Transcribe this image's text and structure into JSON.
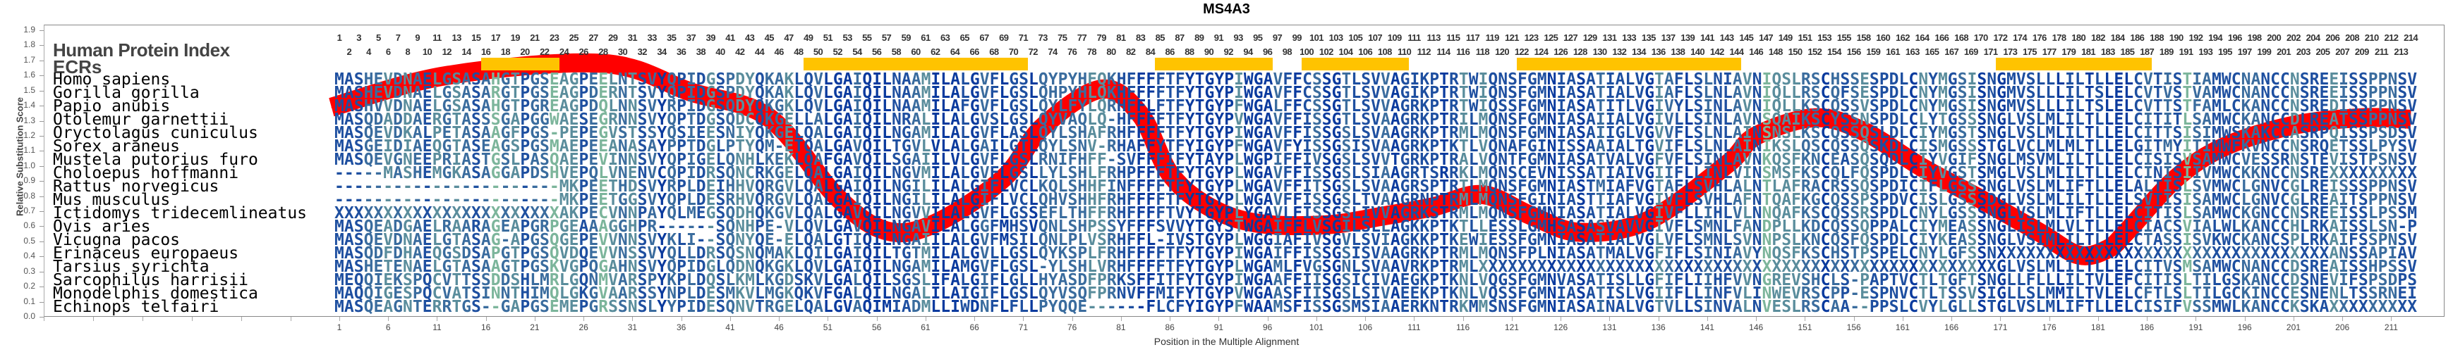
{
  "title": "MS4A3",
  "header": {
    "human_protein_index_label": "Human Protein Index",
    "ecrs_label": "ECRs"
  },
  "human_index_labels": [
    1,
    2,
    3,
    4,
    5,
    6,
    7,
    8,
    9,
    10,
    11,
    12,
    13,
    14,
    15,
    16,
    17,
    18,
    19,
    20,
    21,
    22,
    23,
    24,
    25,
    26,
    27,
    28,
    29,
    30,
    31,
    32,
    33,
    34,
    35,
    36,
    37,
    38,
    39,
    40,
    41,
    42,
    43,
    44,
    45,
    46,
    47,
    48,
    49,
    50,
    51,
    52,
    53,
    54,
    55,
    56,
    57,
    58,
    59,
    60,
    61,
    62,
    63,
    64,
    65,
    66,
    67,
    68,
    69,
    70,
    71,
    72,
    73,
    74,
    75,
    76,
    77,
    78,
    79,
    80,
    81,
    82,
    83,
    84,
    85,
    86,
    87,
    88,
    89,
    90,
    91,
    92,
    93,
    94,
    95,
    96,
    97,
    98,
    99,
    100,
    101,
    102,
    103,
    104,
    105,
    106,
    107,
    108,
    109,
    110,
    111,
    112,
    113,
    114,
    115,
    116,
    117,
    118,
    119,
    120,
    121,
    122,
    123,
    124,
    125,
    126,
    127,
    128,
    129,
    130,
    131,
    132,
    133,
    134,
    135,
    136,
    137,
    138,
    139,
    140,
    141,
    142,
    143,
    144,
    145,
    146,
    147,
    148,
    149,
    150,
    151,
    152,
    153,
    154,
    155,
    156,
    158,
    159,
    160,
    161,
    162,
    163,
    164,
    165,
    166,
    167,
    168,
    169,
    170,
    171,
    172,
    173,
    174,
    175,
    176,
    177,
    178,
    179,
    180,
    181,
    182,
    183,
    184,
    185,
    186,
    187,
    188,
    189,
    190,
    191,
    192,
    193,
    194,
    195,
    196,
    197,
    198,
    199,
    200,
    201,
    202,
    203,
    204,
    205,
    206,
    207,
    208,
    209,
    210,
    211,
    212,
    213,
    214
  ],
  "ecr_regions": [
    [
      16,
      23
    ],
    [
      49,
      71
    ],
    [
      85,
      96
    ],
    [
      100,
      110
    ],
    [
      122,
      144
    ],
    [
      171,
      186
    ]
  ],
  "alignment": [
    {
      "species": "Homo sapiens",
      "sequence": "MASHEVDNAELGSASAHGTPGSEAGPEELNTSVYQPIDGSPDYQKAKLQVLGAIQILNAAMILALGVFLGSLQYPYHFQKHFFFFTFYTGYPIWGAVFFCSSGTLSVVAGIKPTRTWIQNSFGMNIASATIALVGTAFLSLNIAVNIQSLRSCHSSESPDLCNYMGSISNGMVSLLLILTLLELCVTISTIAMWCNANCCNSREEISSPPNSV"
    },
    {
      "species": "Gorilla gorilla",
      "sequence": "MASHEVDNAELGSASARGTPGSEAGPDERNTSVYQPIDGSPDYQKAKLQVLGAIQILNAAMILALGVFLGSLQHPYHLQKHFFFFTFYTGYPIWGAVFFCSSGTLSVVAGIKPTRTWIQNSFGMNIASATIALVGIAFLSLNLAVNIQLLRSCQFSESPDLCNYMGSISNGMVSLLLILTSLELCVTVSTVAMWCNANCCNSREEISSPPNSV"
    },
    {
      "species": "Papio anubis",
      "sequence": "MASHVVDNAELGSASAHGTPGREAGPDQLNNSVYRPIDGSQDYQKGKLQVLGAIQILNAAMILAFGVFLGSLQYLFYLQRHFFLFTFYTGYPFWGALFFCSSGTLSVVAGRKPTRTWIQSSFGMNIASATITLVGIVYLSINLAVNIQLLKSCQSSVSPDLCNYMGSISNGMVSLLLILTSLELCVTTSTFAMLCKANCCNSREDISSPPNSV"
    },
    {
      "species": "Otolemur garnettii",
      "sequence": "MASQDADDAERGTASSSGAPGGWAESEGRNNSVYQPTDGSQDCQKGELLALGAIQILNRALILALGVSLGSLQYVAQLQ-HFFFFTFYTGYPVWGAVFFISSGTLSVAAGRKPTRILMQNSFGMNIASAIIALVGIVLLSINLAVNSQAIKSCYSSNSPDLCLYTGSSSNGLVSLMLILTLLELCITITLSAMWCKANCCDLREATSSPPNSV"
    },
    {
      "species": "Oryctolagus cuniculus",
      "sequence": "MASQEVDKALPETASAAGFPGS-PEPEGVSTSSYQSIEESNIYQKGELQALGAIQILNGAMILALGVFLASLQYLSHAFRHFFFFTFYTGYPIWGAVFFISSGSLSVAAGRKPTRMLMQNSFGMNIASAIIGLVGVVFLSLNLAINSNSLKSCQSSQSLDLCIYMGSTSNGLVSLMLILTLLELCITTSISIMWSKAKCCASRPQISSPSDSV"
    },
    {
      "species": "Sorex araneus",
      "sequence": "MASGEIDIAEQGTASEAGSPGSMAEPEEANASAYPPTDGLPTYQM-ETQALGAVQILTGVLVLALGAILGTLQYLSNV-RHAFFYTFYIGYPFWGAVFYISSGSISVAAGRKPTKTLVQNAFGINISSAAIALTGVIFLSLNLAINIKSLQSCQSSQSKDLCISMGSSSTGLVCLMLMLTLLELGITMYITIMWFKVNCCNSRQETSSLPYSV"
    },
    {
      "species": "Mustela putorius furo",
      "sequence": "MASQEVGNEEPRIASTGSLPASQAEPEVINNSVYQPIGELQNHLKEKLQAFGAVQILSGAIILVLGVFLGSLRNIFHFF-SVFFFIFYTAYPLWGPIFFIVSGSLSVVTGRKPTRALVQNTFGMNIASATVALVGFVFLSINLAVNKQSFKNCEASQSQDLCIYVGIFSNGLMSVMLILTLLELCISISVSAMWCVESSRNSTEVISTPSNSV"
    },
    {
      "species": "Choloepus hoffmanni",
      "sequence": "-----MASHEMGKASAGGAPDSHVEPQLVNENVCQPIDRSQNCRKGELQALGAIQILNGVMILALGVFLGSLLYLSHLFRHPFFFTFYTGYPLWGAVFFISSGSLSIAAGRTSRRKLMQNSCEVNISSATIAIVGIIFLLINLVINSMSFKSCQLFQSPDLCIYVGSTSMGLVSLMLILTLLELCINISIIVMWCKKNCCNSREXXXXXXXXX"
    },
    {
      "species": "Rattus norvegicus",
      "sequence": "-----------------------MKPEETHDSVYRPLDEIHHVQRGVLQALGAIQILNGILILALGIFLVCLKQLSHHFINFFFFTFYTGYPLWGAVFFITSGSLSVAAGRSPTRTLMQNSFGMNIASTMIAFVGTAFLSVHLALNTLAFRACRSSQSPDICIFLGSSSNGLVSLMLIFTLLELALTISLSVMWCLGNVCGLREISSSPPNSV"
    },
    {
      "species": "Mus musculus",
      "sequence": "-----------------------MKPEETGGSVYQPLDESRHVQRGVLQALGAIQILNGILILALGIFLVCLQHVSHHFRHFFFFTFYTGYPLWGAVFFISSGSLTVAAGRNPTRMLMQNSFGINIASTTIAFVGIVFLSVHLAFNTQAFKGCQSSPSPDVCISLGSSSDGLVSLMLILTLLELSVTISISAMWCLGNVCGLREAITSPPNSV"
    },
    {
      "species": "Ictidomys tridecemlineatus",
      "sequence": "XXXXXXXXXXXXXXXXXXXXXXXAKPECVNNPAYQLMEGSQDHQKGVLQALGAVQILNGVVILALGVFLGSSEFLTHFFRHFFFFTVYTGYPLYGAVLFISSGSLIVVAGRKSTRMLMQNSFGMNIASATIALVGIVFLLIHLVLNNQAFKSCQSSRSPDLCNYLGSSSNGLVSLMLIFTLLELCITISLSAMWCKGNCCNSREEISSLPSSM"
    },
    {
      "species": "Ovis aries",
      "sequence": "MASQEADGAELRAARAGEAPGRPGEAAAGGHPR------SQNHPE-VLQVLGAVQILNGAVILALGGFMHSVQNLSHPSSYFFFSVVYTGYSTWGAIFFLVSGILSLLAGKKPTKTLLESSLGMHSASASVAVVGIVFLSMNLFANDPLLKDCQSSQPPALCIYMEASSNGLISLMLVLTLLELCIACSVIALWLKANCCHLRKAISSLSN-P"
    },
    {
      "species": "Vicugna pacos",
      "sequence": "MASQEVDNAELGTASAG-APGSQGEPEVVNNSVYKLI--SQNYQE-ELQALGTIQILNGAIILALGVFMSILQNLPLVSRHFFL-IVSTGYPLWGGIAFIVSGVLSVIAGKKPTKEWIESSFGMNIASATIALVGLVFLSMNLSVNNPSLKNCQSFQSPDLCIYKEASSNGLVSIMLILTLLELCTASSISVKWCKANCSPLRKAIFSSPNSV"
    },
    {
      "species": "Erinaceus europaeus",
      "sequence": "MASQDFDHAEQGSDSAPGTPGSQVDQEVVNSSVYQLLDRSQSNQMAKLQILGAIQILTGTMILALGVLLGSLQYKSPLFRHFFFFTFYTGYPIWGAIFFISSGSISVAAGRKPTRMLMQNSFPLNIASATMALVGFIFLSINIAVYNQSFKSCHSTPSPELCNYLGFSSNXXXXXXXXXXXXXXXXXXXXXXXXXXXXXXXXXXANSSAPIAV"
    },
    {
      "species": "Tarsius syrichta",
      "sequence": "MASHETENAELGTASAAGTPGSKVGPQGAHNSVYQPIDGLQDNQKGKLQVLGAIQILNGAMILAMGVFLGSL-YLSHLVRHFFFFTFYTGYPLWGAMLFVGSGNLSVAAVRKPTRMLXXXXXXXXXXXXXXXXXXXXXXXXXXXXXXXXXXXXXXXXXXXXXXXXXXXXXGLVSLMLILTLLELCITVSMSAMWCNANCCDSREAISSHPSSV"
    },
    {
      "species": "Sarcophilus harrisii",
      "sequence": "MEQQIEKSPQCVTTSSDDSHLMRLGQNMVARSPYKPLDQSLKMLKGDSKVLGALQILSGSLIFALGIFLGLLHYASDFPRKSFFITFYTGYPIWGAAFFIISGSICIVAEGKPTKNLVQGSFGMNVASATISLLGFIFLIIHFVVNGREVSHCLS-PAPTVCTLTGFTSNGLLFLLLILTVLEFCITISLTILGSKANCCDSNEVIFSPSDPS"
    },
    {
      "species": "Monodelphis domestica",
      "sequence": "MAQQIGESPQCVATSINNTHIMQLGKGVAARSSYNPLDESMKVLMGKQKVFGALQILNGALILAIGIFLGSLQYVSQFPRNVFFMIFYTGYPVWGAASFIISGSLSIVAEEKPTKNLVQSSFGMNIASATISLVGIIFLLINFVLINWEVRSCPP-ESPNVCTLTSSVSIGLLSLMMILTVLELCFTLSLTILGCKINCCESNENLTSSRNEI"
    },
    {
      "species": "Echinops telfairi",
      "sequence": "MASQEAGNTERRTGS--GAPGSEMEPGRSSNSLYYPIDESQNVTRGELQALGVAQIMIADMLLIWDNFLFLLPYQQE------FLCFYIGYPFWAAMSFISSGSMSIAAERKNTRKMMSNSFGMNIASAINALVGTVLLSINVALNVESLRSCAA--PPSLCVYLGLLSTGLVSLMLIFTLLELCISIFVSSMWLKANCCKSKAXXXXXXXXX"
    }
  ],
  "colors": {
    "curve": "#ff0000",
    "ecr": "#ffc300",
    "conservation_scale": [
      "#0a3a9e",
      "#1e4fa0",
      "#3a6c9e",
      "#5a8d9c",
      "#7cb59b"
    ]
  },
  "chart_data": {
    "type": "line",
    "title": "MS4A3",
    "xlabel": "Position in the Multiple Alignment",
    "ylabel": "Relative Substitution Score",
    "ylim": [
      0,
      1.9
    ],
    "xlim": [
      1,
      213
    ],
    "yticks": [
      "0.0",
      "0.1",
      "0.2",
      "0.3",
      "0.4",
      "0.5",
      "0.6",
      "0.7",
      "0.8",
      "0.9",
      "1.0",
      "1.1",
      "1.2",
      "1.3",
      "1.4",
      "1.5",
      "1.6",
      "1.7",
      "1.8",
      "1.9"
    ],
    "xticks": [
      1,
      6,
      11,
      16,
      21,
      26,
      31,
      36,
      41,
      46,
      51,
      56,
      61,
      66,
      71,
      76,
      81,
      86,
      91,
      96,
      101,
      106,
      111,
      116,
      121,
      126,
      131,
      136,
      141,
      146,
      151,
      156,
      161,
      166,
      171,
      176,
      181,
      186,
      191,
      196,
      201,
      206,
      211
    ],
    "grid": false,
    "series": [
      {
        "name": "Relative Substitution Score",
        "x": [
          0.2,
          12,
          28,
          37,
          45,
          52,
          57,
          62,
          69,
          73,
          79,
          83,
          86,
          90,
          95,
          102,
          108,
          113,
          118,
          123,
          128,
          135,
          143,
          146,
          152,
          157,
          163,
          169,
          175,
          179,
          182,
          184,
          189,
          194,
          201,
          208,
          213
        ],
        "y": [
          1.39,
          1.6,
          1.68,
          1.49,
          1.32,
          0.79,
          0.57,
          0.62,
          0.92,
          1.26,
          1.51,
          1.34,
          0.95,
          0.73,
          0.62,
          0.61,
          0.67,
          0.73,
          0.81,
          0.67,
          0.56,
          0.64,
          1.01,
          1.2,
          1.32,
          1.23,
          0.99,
          0.78,
          0.56,
          0.41,
          0.45,
          0.57,
          0.92,
          1.13,
          1.27,
          1.32,
          1.31
        ]
      }
    ]
  }
}
